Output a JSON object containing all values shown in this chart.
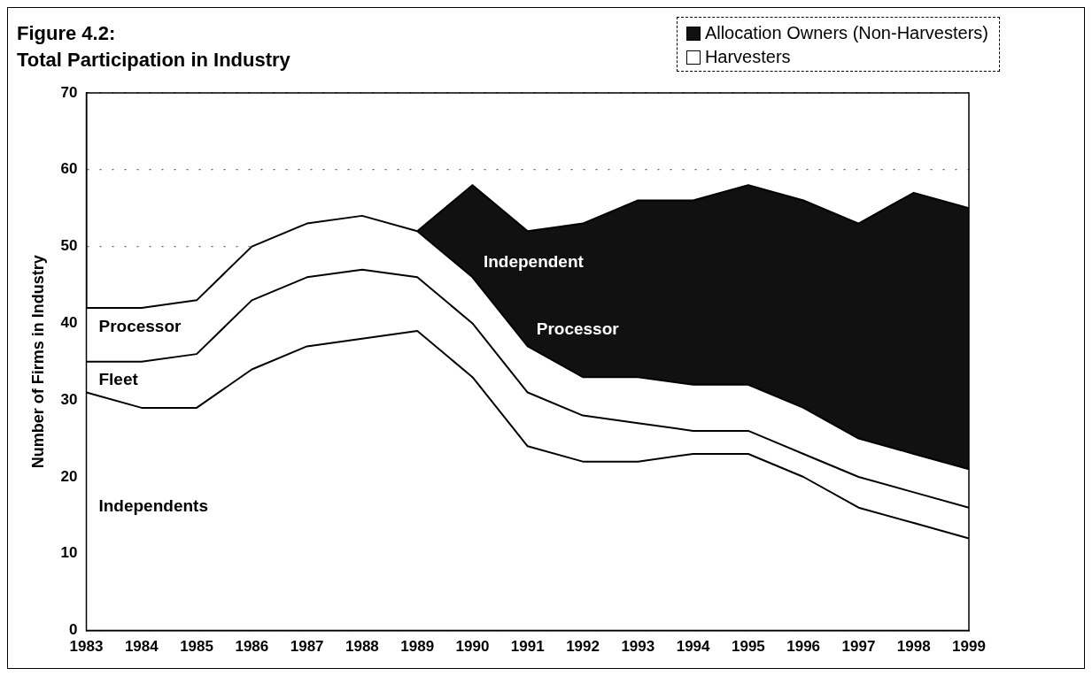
{
  "chart_data": {
    "type": "area",
    "title": "Figure 4.2:",
    "subtitle": "Total Participation in Industry",
    "ylabel": "Number of Firms in Industry",
    "categories": [
      "1983",
      "1984",
      "1985",
      "1986",
      "1987",
      "1988",
      "1989",
      "1990",
      "1991",
      "1992",
      "1993",
      "1994",
      "1995",
      "1996",
      "1997",
      "1998",
      "1999"
    ],
    "stacked": true,
    "ylim": [
      0,
      70
    ],
    "yticks": [
      0,
      10,
      20,
      30,
      40,
      50,
      60,
      70
    ],
    "grid": "y",
    "legend": "top right",
    "series": [
      {
        "name": "Harvesters",
        "color": "#ffffff",
        "values": [
          31,
          29,
          29,
          34,
          37,
          38,
          39,
          33,
          24,
          22,
          22,
          23,
          23,
          20,
          16,
          14,
          12
        ]
      },
      {
        "color": "#ffffff",
        "values": [
          4,
          6,
          7,
          9,
          9,
          9,
          7,
          7,
          7,
          6,
          5,
          3,
          3,
          3,
          4,
          4,
          4
        ]
      },
      {
        "color": "#ffffff",
        "values": [
          7,
          7,
          7,
          7,
          7,
          7,
          6,
          6,
          6,
          5,
          6,
          6,
          6,
          6,
          5,
          5,
          5
        ]
      },
      {
        "name": "Allocation Owners (Non-Harvesters)",
        "color": "#111111",
        "values": [
          null,
          null,
          null,
          null,
          null,
          null,
          0,
          12,
          15,
          20,
          23,
          24,
          26,
          27,
          28,
          34,
          34
        ]
      }
    ],
    "annotations": [
      "Independents",
      "Fleet",
      "Processor",
      "Independent",
      "Processor"
    ]
  }
}
